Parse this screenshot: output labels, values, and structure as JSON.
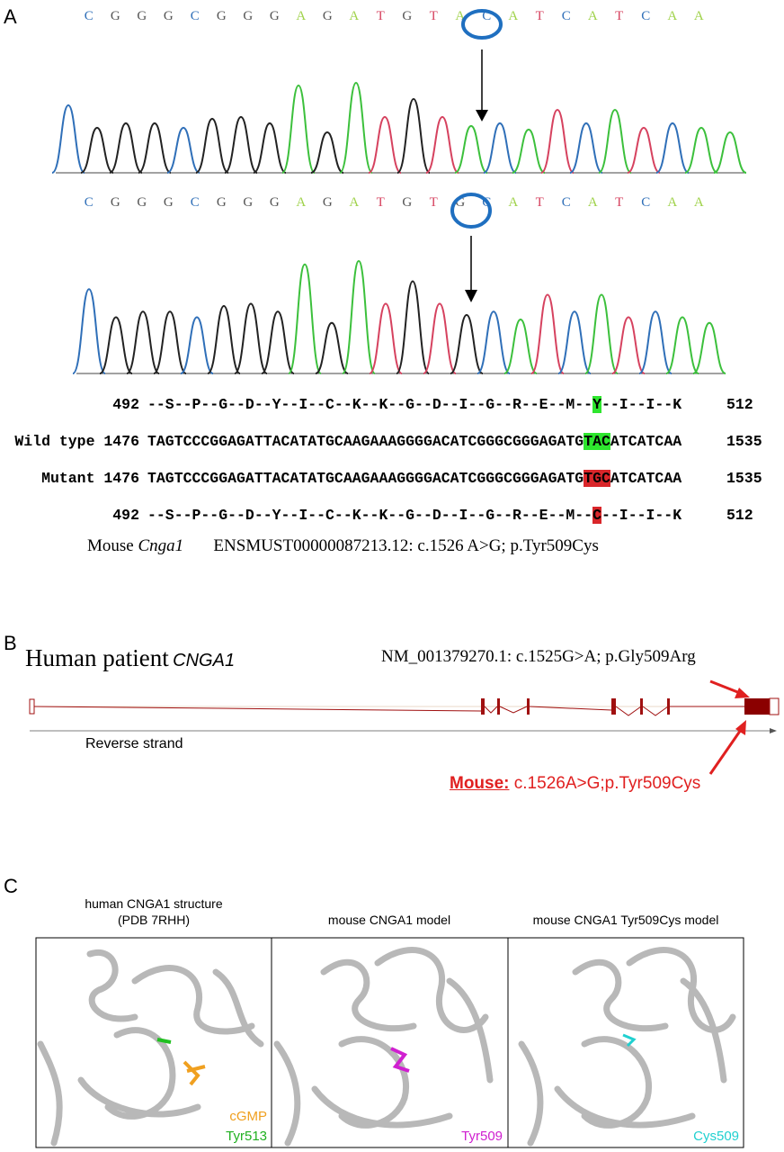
{
  "panel_a": {
    "label": "A",
    "trace_top": [
      "C",
      "G",
      "G",
      "G",
      "C",
      "G",
      "G",
      "G",
      "A",
      "G",
      "A",
      "T",
      "G",
      "T",
      "A",
      "C",
      "A",
      "T",
      "C",
      "A",
      "T",
      "C",
      "A",
      "A"
    ],
    "trace_bottom": [
      "C",
      "G",
      "G",
      "G",
      "C",
      "G",
      "G",
      "G",
      "A",
      "G",
      "A",
      "T",
      "G",
      "T",
      "G",
      "C",
      "A",
      "T",
      "C",
      "A",
      "T",
      "C",
      "A",
      "A"
    ],
    "alignment": [
      {
        "start": "492",
        "pre": "--S--P--G--D--Y--I--C--K--K--G--D--I--G--R--E--M--",
        "highlight": "Y",
        "post": "--I--I--K",
        "end": "512"
      },
      {
        "start": "Wild type 1476",
        "pre": "TAGTCCCGGAGATTACATATGCAAGAAAGGGGACATCGGGCGGGAGATG",
        "highlight": "TAC",
        "post": "ATCATCAA",
        "end": "1535"
      },
      {
        "start": "Mutant 1476",
        "pre": "TAGTCCCGGAGATTACATATGCAAGAAAGGGGACATCGGGCGGGAGATG",
        "highlight": "TGC",
        "post": "ATCATCAA",
        "end": "1535"
      },
      {
        "start": "492",
        "pre": "--S--P--G--D--Y--I--C--K--K--G--D--I--G--R--E--M--",
        "highlight": "C",
        "post": "--I--I--K",
        "end": "512"
      }
    ],
    "caption": {
      "prefix": "Mouse",
      "gene": "Cnga1",
      "text": "ENSMUST00000087213.12: c.1526 A>G; p.Tyr509Cys"
    }
  },
  "panel_b": {
    "label": "B",
    "title": "Human patient",
    "gene": "CNGA1",
    "human_variant": "NM_001379270.1: c.1525G>A; p.Gly509Arg",
    "strand": "Reverse strand",
    "mouse_label": "Mouse:",
    "mouse_variant": "c.1526A>G;p.Tyr509Cys"
  },
  "panel_c": {
    "label": "C",
    "panels": [
      {
        "title": [
          "human CNGA1 structure",
          "(PDB 7RHH)"
        ],
        "labels": [
          "cGMP",
          "Tyr513"
        ]
      },
      {
        "title": [
          "mouse CNGA1 model"
        ],
        "labels": [
          "Tyr509"
        ]
      },
      {
        "title": [
          "mouse CNGA1 Tyr509Cys model"
        ],
        "labels": [
          "Cys509"
        ]
      }
    ]
  }
}
